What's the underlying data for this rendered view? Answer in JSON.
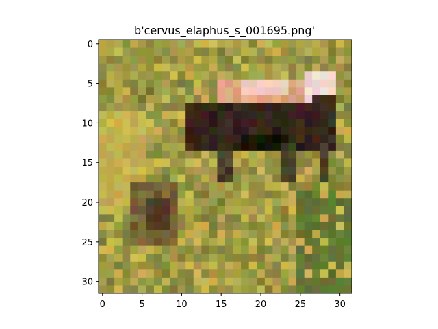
{
  "figure": {
    "title": "b'cervus_elaphus_s_001695.png'",
    "background": "#ffffff"
  },
  "image": {
    "grid_size": 32,
    "subject": "red deer (cervus elaphus) standing in grass, low-resolution pixel image",
    "palette": {
      "grass_light": "#b3a84e",
      "grass_yellow": "#c9b451",
      "grass_dark": "#6f7332",
      "grass_green": "#5f7a35",
      "deer_back_light": "#e7b08a",
      "deer_back_pale": "#f1cfc0",
      "deer_body_dark": "#2b2117",
      "deer_belly_black": "#151509",
      "deer_legs": "#3c3424",
      "fawn_brown": "#6a5232",
      "fawn_dark": "#4a3a25"
    }
  },
  "axes": {
    "x_ticks": [
      0,
      5,
      10,
      15,
      20,
      25,
      30
    ],
    "y_ticks": [
      0,
      5,
      10,
      15,
      20,
      25,
      30
    ],
    "x_range": [
      -0.5,
      31.5
    ],
    "y_range": [
      -0.5,
      31.5
    ],
    "y_inverted": true
  }
}
